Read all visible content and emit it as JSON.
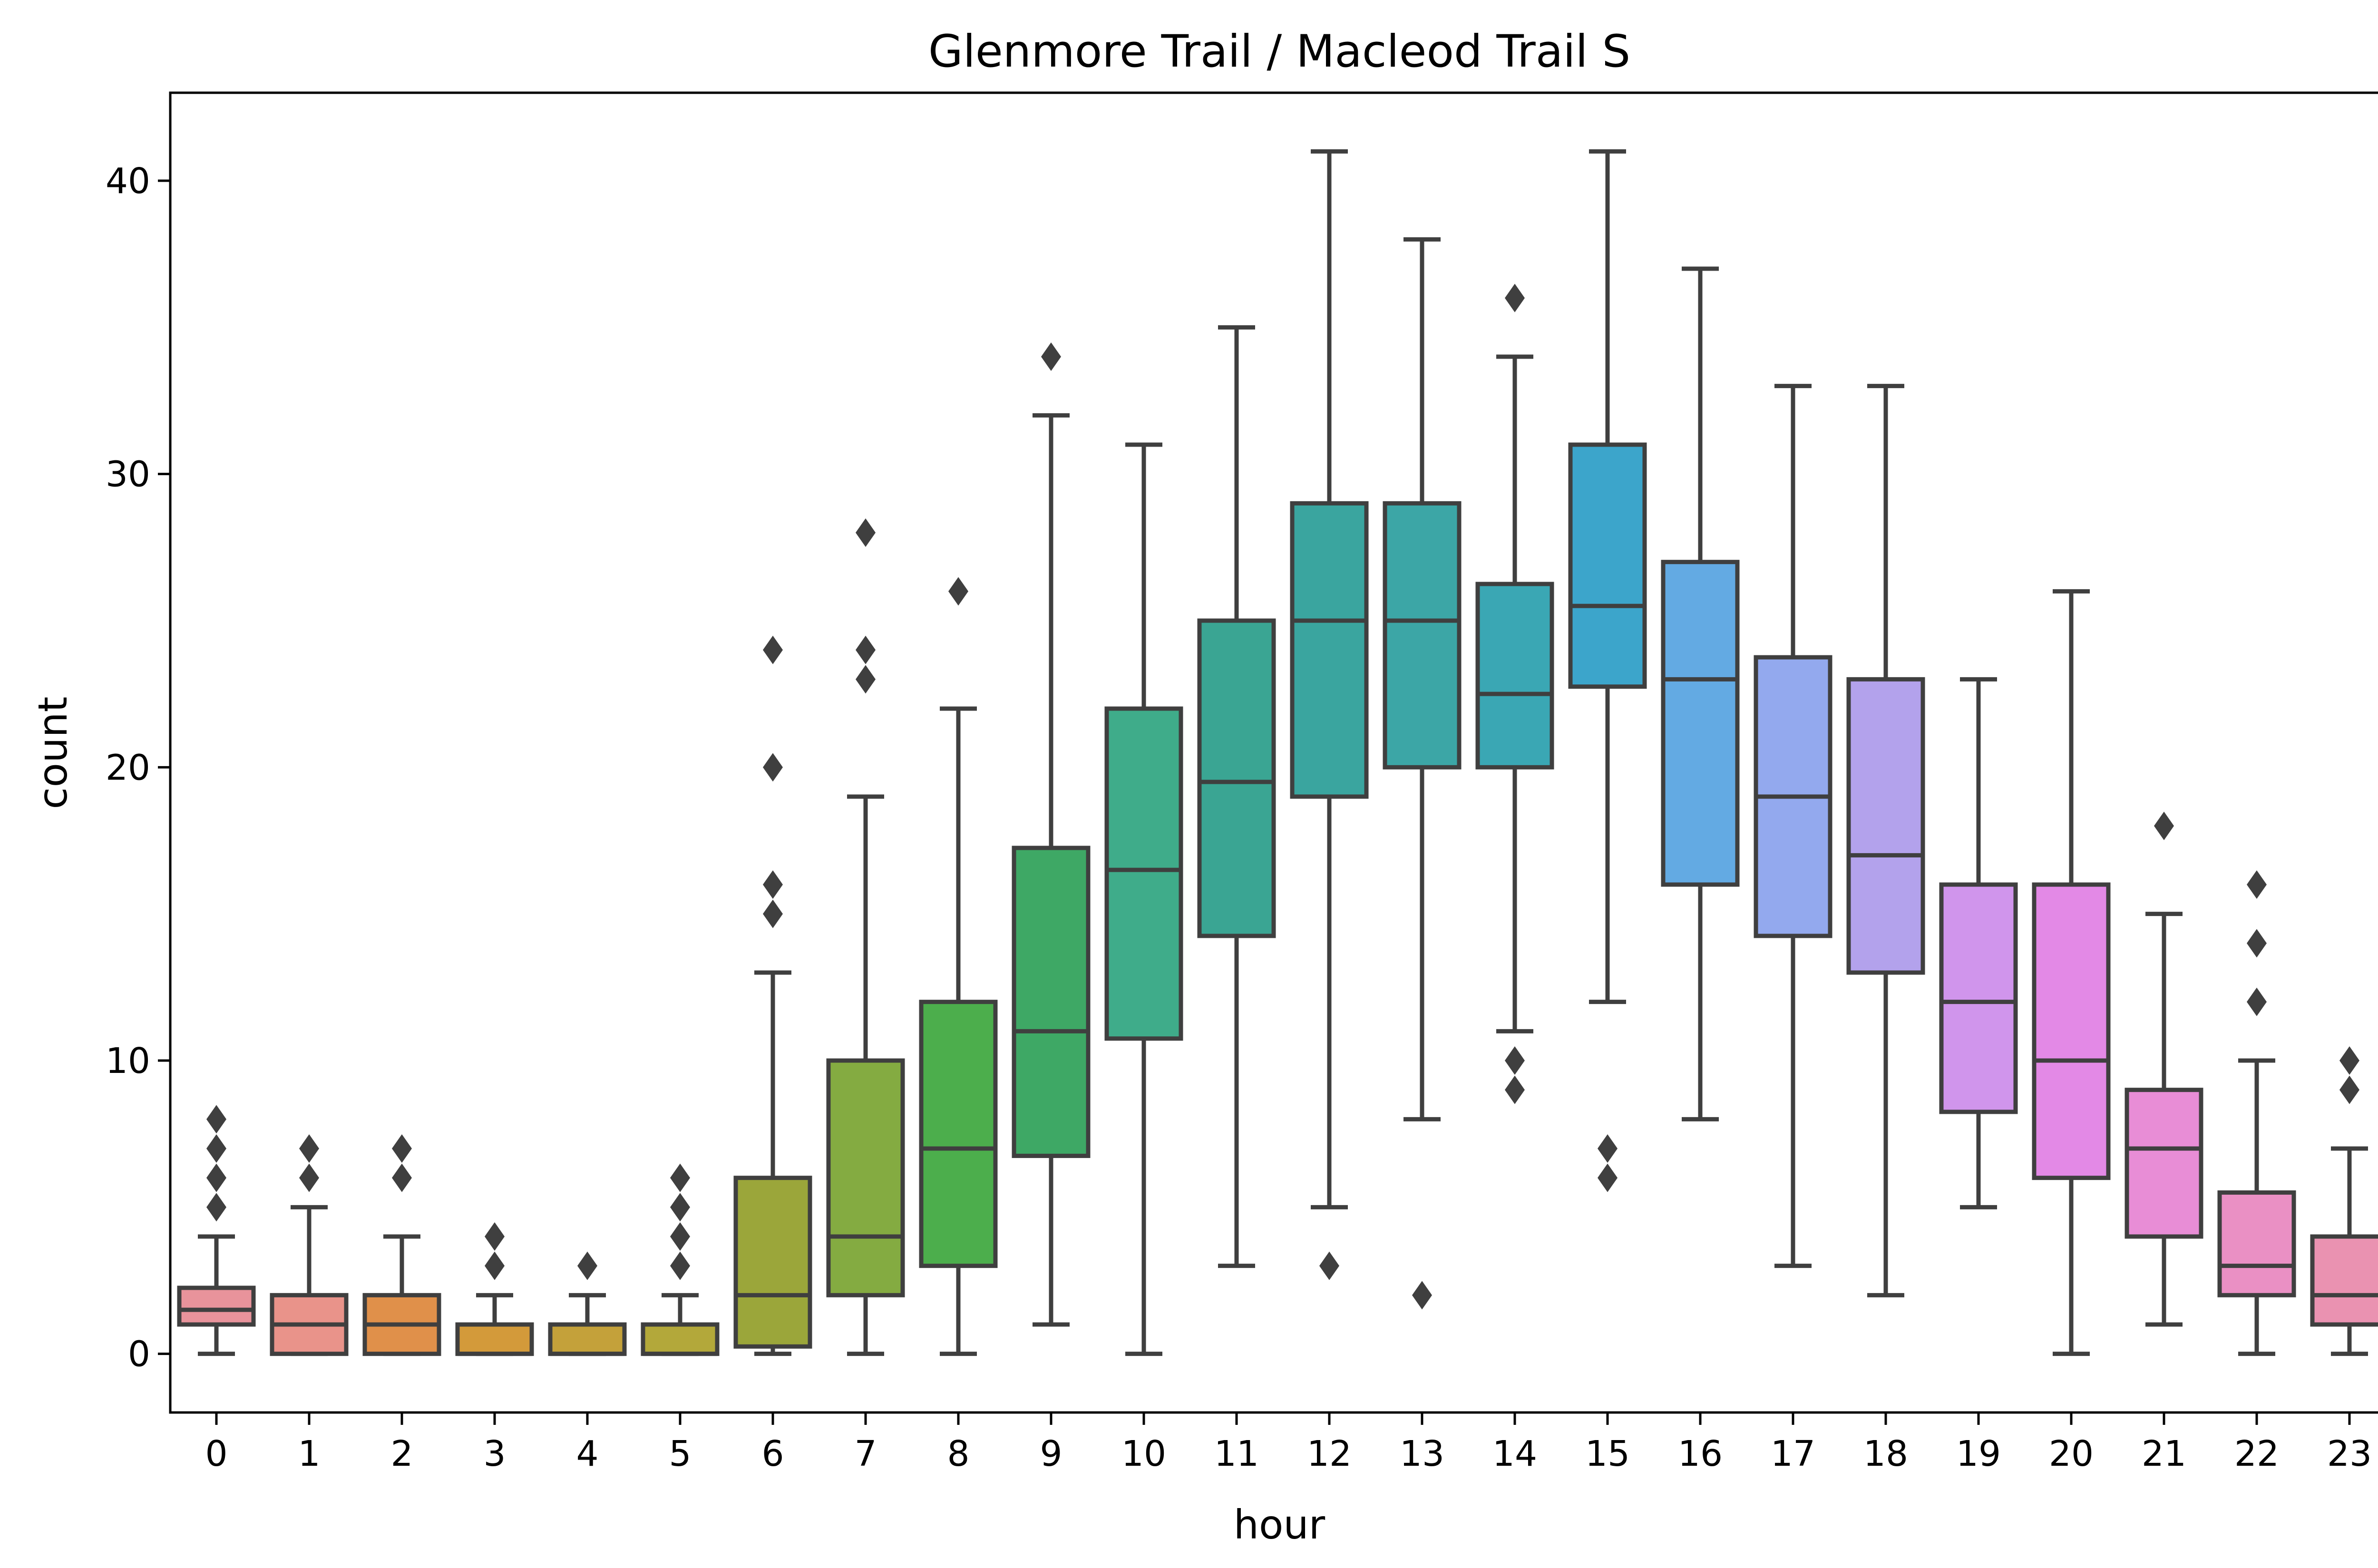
{
  "chart_data": {
    "type": "box",
    "title": "Glenmore Trail / Macleod Trail S",
    "xlabel": "hour",
    "ylabel": "count",
    "ylim": [
      -2,
      43
    ],
    "yticks": [
      0,
      10,
      20,
      30,
      40
    ],
    "grid": false,
    "legend": "none",
    "line_color": "#3f3f3f",
    "categories": [
      "0",
      "1",
      "2",
      "3",
      "4",
      "5",
      "6",
      "7",
      "8",
      "9",
      "10",
      "11",
      "12",
      "13",
      "14",
      "15",
      "16",
      "17",
      "18",
      "19",
      "20",
      "21",
      "22",
      "23"
    ],
    "boxes": [
      {
        "hour": "0",
        "whisker_low": 0,
        "q1": 1,
        "median": 1.5,
        "q3": 2.25,
        "whisker_high": 4,
        "outliers": [
          5,
          6,
          7,
          8
        ],
        "color": "#e8939b"
      },
      {
        "hour": "1",
        "whisker_low": 0,
        "q1": 0,
        "median": 1,
        "q3": 2,
        "whisker_high": 5,
        "outliers": [
          6,
          7
        ],
        "color": "#e9938a"
      },
      {
        "hour": "2",
        "whisker_low": 0,
        "q1": 0,
        "median": 1,
        "q3": 2,
        "whisker_high": 4,
        "outliers": [
          6,
          7
        ],
        "color": "#e0904a"
      },
      {
        "hour": "3",
        "whisker_low": 0,
        "q1": 0,
        "median": 0,
        "q3": 1,
        "whisker_high": 2,
        "outliers": [
          3,
          4
        ],
        "color": "#d39a3a"
      },
      {
        "hour": "4",
        "whisker_low": 0,
        "q1": 0,
        "median": 0,
        "q3": 1,
        "whisker_high": 2,
        "outliers": [
          3
        ],
        "color": "#c4a13a"
      },
      {
        "hour": "5",
        "whisker_low": 0,
        "q1": 0,
        "median": 0,
        "q3": 1,
        "whisker_high": 2,
        "outliers": [
          3,
          4,
          5,
          6
        ],
        "color": "#b3a83a"
      },
      {
        "hour": "6",
        "whisker_low": 0,
        "q1": 0.25,
        "median": 2,
        "q3": 6,
        "whisker_high": 13,
        "outliers": [
          15,
          16,
          20,
          24
        ],
        "color": "#9ba63a"
      },
      {
        "hour": "7",
        "whisker_low": 0,
        "q1": 2,
        "median": 4,
        "q3": 10,
        "whisker_high": 19,
        "outliers": [
          23,
          24,
          28
        ],
        "color": "#84ab41"
      },
      {
        "hour": "8",
        "whisker_low": 0,
        "q1": 3,
        "median": 7,
        "q3": 12,
        "whisker_high": 22,
        "outliers": [
          26
        ],
        "color": "#4cae4c"
      },
      {
        "hour": "9",
        "whisker_low": 1,
        "q1": 6.75,
        "median": 11,
        "q3": 17.25,
        "whisker_high": 32,
        "outliers": [
          34
        ],
        "color": "#3ea865"
      },
      {
        "hour": "10",
        "whisker_low": 0,
        "q1": 10.75,
        "median": 16.5,
        "q3": 22,
        "whisker_high": 31,
        "outliers": [],
        "color": "#3fac8a"
      },
      {
        "hour": "11",
        "whisker_low": 3,
        "q1": 14.25,
        "median": 19.5,
        "q3": 25,
        "whisker_high": 35,
        "outliers": [],
        "color": "#3aa593"
      },
      {
        "hour": "12",
        "whisker_low": 5,
        "q1": 19,
        "median": 25,
        "q3": 29,
        "whisker_high": 41,
        "outliers": [
          3
        ],
        "color": "#3aa59f"
      },
      {
        "hour": "13",
        "whisker_low": 8,
        "q1": 20,
        "median": 25,
        "q3": 29,
        "whisker_high": 38,
        "outliers": [
          2
        ],
        "color": "#3ca6a6"
      },
      {
        "hour": "14",
        "whisker_low": 11,
        "q1": 20,
        "median": 22.5,
        "q3": 26.25,
        "whisker_high": 34,
        "outliers": [
          9,
          10,
          36
        ],
        "color": "#3aa7b4"
      },
      {
        "hour": "15",
        "whisker_low": 12,
        "q1": 22.75,
        "median": 25.5,
        "q3": 31,
        "whisker_high": 41,
        "outliers": [
          6,
          7
        ],
        "color": "#3ca5cb"
      },
      {
        "hour": "16",
        "whisker_low": 8,
        "q1": 16,
        "median": 23,
        "q3": 27,
        "whisker_high": 37,
        "outliers": [],
        "color": "#63aae3"
      },
      {
        "hour": "17",
        "whisker_low": 3,
        "q1": 14.25,
        "median": 19,
        "q3": 23.75,
        "whisker_high": 33,
        "outliers": [],
        "color": "#93a9ee"
      },
      {
        "hour": "18",
        "whisker_low": 2,
        "q1": 13,
        "median": 17,
        "q3": 23,
        "whisker_high": 33,
        "outliers": [],
        "color": "#b3a2ec"
      },
      {
        "hour": "19",
        "whisker_low": 5,
        "q1": 8.25,
        "median": 12,
        "q3": 16,
        "whisker_high": 23,
        "outliers": [],
        "color": "#d095ec"
      },
      {
        "hour": "20",
        "whisker_low": 0,
        "q1": 6,
        "median": 10,
        "q3": 16,
        "whisker_high": 26,
        "outliers": [],
        "color": "#e389e6"
      },
      {
        "hour": "21",
        "whisker_low": 1,
        "q1": 4,
        "median": 7,
        "q3": 9,
        "whisker_high": 15,
        "outliers": [
          18
        ],
        "color": "#e88dd6"
      },
      {
        "hour": "22",
        "whisker_low": 0,
        "q1": 2,
        "median": 3,
        "q3": 5.5,
        "whisker_high": 10,
        "outliers": [
          12,
          14,
          16
        ],
        "color": "#ea90c4"
      },
      {
        "hour": "23",
        "whisker_low": 0,
        "q1": 1,
        "median": 2,
        "q3": 4,
        "whisker_high": 7,
        "outliers": [
          9,
          10
        ],
        "color": "#ea92b1"
      }
    ]
  }
}
